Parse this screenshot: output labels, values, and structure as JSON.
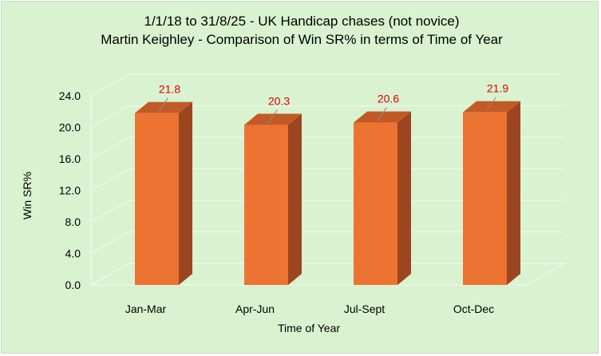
{
  "chart_data": {
    "type": "bar",
    "title": "1/1/18 to 31/8/25 - UK Handicap chases (not novice)",
    "subtitle": "Martin Keighley - Comparison of Win SR% in terms of Time of Year",
    "xlabel": "Time of Year",
    "ylabel": "Win SR%",
    "categories": [
      "Jan-Mar",
      "Apr-Jun",
      "Jul-Sept",
      "Oct-Dec"
    ],
    "values": [
      21.8,
      20.3,
      20.6,
      21.9
    ],
    "data_labels": [
      "21.8",
      "20.3",
      "20.6",
      "21.9"
    ],
    "ylim": [
      0,
      24
    ],
    "yticks": [
      "0.0",
      "4.0",
      "8.0",
      "12.0",
      "16.0",
      "20.0",
      "24.0"
    ],
    "grid": true,
    "legend": "none",
    "style": "3d-column",
    "colors": {
      "bar_front": "#ed7332",
      "bar_side": "#9b4620",
      "bar_top": "#c25a27",
      "background": "#d9f2d0",
      "data_label": "#e00000"
    }
  }
}
